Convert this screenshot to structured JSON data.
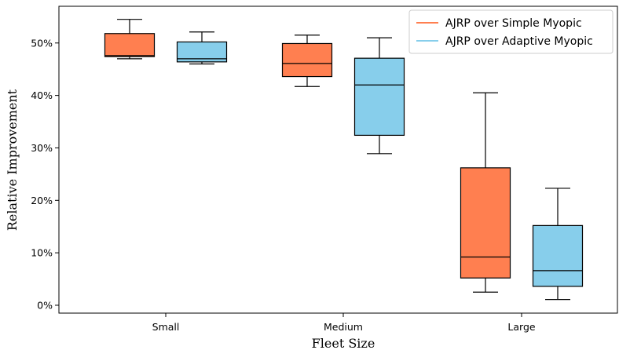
{
  "chart_data": {
    "type": "box",
    "xlabel": "Fleet Size",
    "ylabel": "Relative Improvement",
    "categories": [
      "Small",
      "Medium",
      "Large"
    ],
    "y_ticks": [
      0,
      10,
      20,
      30,
      40,
      50
    ],
    "y_tick_labels": [
      "0%",
      "10%",
      "20%",
      "30%",
      "40%",
      "50%"
    ],
    "ylim": [
      -1.5,
      57
    ],
    "legend_position": "top-right",
    "grid": false,
    "series": [
      {
        "name": "AJRP over Simple Myopic",
        "color": "#FF7F50",
        "boxes": [
          {
            "category": "Small",
            "whisker_low": 47.0,
            "q1": 47.4,
            "median": 47.6,
            "q3": 51.8,
            "whisker_high": 54.5
          },
          {
            "category": "Medium",
            "whisker_low": 41.7,
            "q1": 43.6,
            "median": 46.1,
            "q3": 49.9,
            "whisker_high": 51.5
          },
          {
            "category": "Large",
            "whisker_low": 2.5,
            "q1": 5.2,
            "median": 9.2,
            "q3": 26.2,
            "whisker_high": 40.5
          }
        ]
      },
      {
        "name": "AJRP over Adaptive Myopic",
        "color": "#87CEEB",
        "boxes": [
          {
            "category": "Small",
            "whisker_low": 46.0,
            "q1": 46.4,
            "median": 47.0,
            "q3": 50.2,
            "whisker_high": 52.1
          },
          {
            "category": "Medium",
            "whisker_low": 28.9,
            "q1": 32.4,
            "median": 42.0,
            "q3": 47.1,
            "whisker_high": 51.0
          },
          {
            "category": "Large",
            "whisker_low": 1.1,
            "q1": 3.6,
            "median": 6.6,
            "q3": 15.2,
            "whisker_high": 22.3
          }
        ]
      }
    ]
  }
}
